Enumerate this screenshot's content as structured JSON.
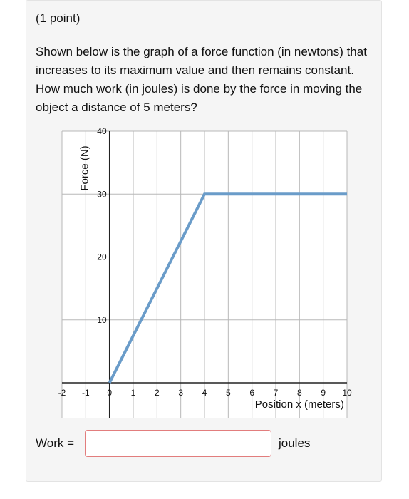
{
  "problem": {
    "points": "(1 point)",
    "question": "Shown below is the graph of a force function (in newtons) that increases to its maximum value and then remains constant. How much work (in joules) is done by the force in moving the object a distance of 5 meters?"
  },
  "answer": {
    "label": "Work =",
    "value": "",
    "unit": "joules"
  },
  "colors": {
    "line": "#6a9cc9",
    "grid": "#b8b8b8",
    "axis": "#222222",
    "input_border": "#e27d7d"
  },
  "chart_data": {
    "type": "line",
    "xlabel": "Position x (meters)",
    "ylabel": "Force (N)",
    "xlim": [
      -2,
      10
    ],
    "ylim": [
      0,
      40
    ],
    "x_ticks": [
      "-2",
      "-1",
      "0",
      "1",
      "2",
      "3",
      "4",
      "5",
      "6",
      "7",
      "8",
      "9",
      "10"
    ],
    "y_ticks": [
      "10",
      "20",
      "30",
      "40"
    ],
    "grid": true,
    "series": [
      {
        "x": [
          0,
          4,
          10
        ],
        "y": [
          0,
          30,
          30
        ]
      }
    ]
  }
}
